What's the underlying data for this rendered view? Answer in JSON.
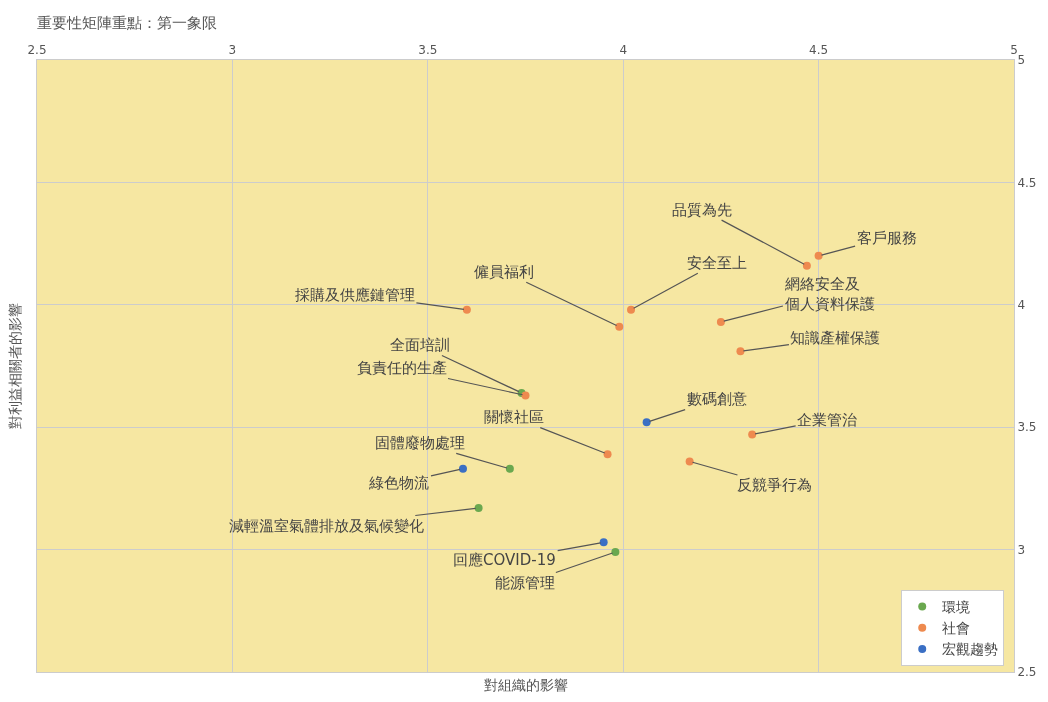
{
  "chart_data": {
    "type": "scatter",
    "title": "重要性矩陣重點：第一象限",
    "xlabel": "對組織的影響",
    "ylabel": "對利益相關者的影響",
    "xlim": [
      2.5,
      5
    ],
    "xticks": [
      2.5,
      3,
      3.5,
      4,
      4.5,
      5
    ],
    "ylim": [
      2.5,
      5
    ],
    "yticks": [
      2.5,
      3,
      3.5,
      4,
      4.5,
      5
    ],
    "grid": true,
    "legend": "bottom right",
    "marker": "circle",
    "series": [
      {
        "name": "環境",
        "color": "#6aa84f",
        "x": [
          3.74,
          3.71,
          3.63,
          3.98
        ],
        "values": [
          3.64,
          3.33,
          3.17,
          2.99
        ]
      },
      {
        "name": "社會",
        "color": "#ee8a4f",
        "x": [
          4.47,
          4.5,
          4.02,
          3.99,
          4.25,
          3.6,
          4.3,
          3.75,
          3.96,
          4.33,
          4.17
        ],
        "values": [
          4.16,
          4.2,
          3.98,
          3.91,
          3.93,
          3.98,
          3.81,
          3.63,
          3.39,
          3.47,
          3.36
        ]
      },
      {
        "name": "宏觀趨勢",
        "color": "#3a6fc4",
        "x": [
          4.06,
          3.59,
          3.95
        ],
        "values": [
          3.52,
          3.33,
          3.03
        ]
      }
    ],
    "annotations": [
      {
        "text": "品質為先",
        "x": 4.47,
        "y": 4.16
      },
      {
        "text": "客戶服務",
        "x": 4.5,
        "y": 4.2
      },
      {
        "text": "安全至上",
        "x": 4.02,
        "y": 3.98
      },
      {
        "text": "僱員福利",
        "x": 3.99,
        "y": 3.91
      },
      {
        "text": "網絡安全及個人資料保護",
        "x": 4.25,
        "y": 3.93
      },
      {
        "text": "採購及供應鏈管理",
        "x": 3.6,
        "y": 3.98
      },
      {
        "text": "知識產權保護",
        "x": 4.3,
        "y": 3.81
      },
      {
        "text": "全面培訓",
        "x": 3.74,
        "y": 3.64
      },
      {
        "text": "負責任的生產",
        "x": 3.75,
        "y": 3.63
      },
      {
        "text": "數碼創意",
        "x": 4.06,
        "y": 3.52
      },
      {
        "text": "關懷社區",
        "x": 3.96,
        "y": 3.39
      },
      {
        "text": "企業管治",
        "x": 4.33,
        "y": 3.47
      },
      {
        "text": "反競爭行為",
        "x": 4.17,
        "y": 3.36
      },
      {
        "text": "固體廢物處理",
        "x": 3.71,
        "y": 3.33
      },
      {
        "text": "綠色物流",
        "x": 3.59,
        "y": 3.33
      },
      {
        "text": "減輕溫室氣體排放及氣候變化",
        "x": 3.63,
        "y": 3.17
      },
      {
        "text": "回應COVID-19",
        "x": 3.95,
        "y": 3.03
      },
      {
        "text": "能源管理",
        "x": 3.98,
        "y": 2.99
      }
    ]
  }
}
